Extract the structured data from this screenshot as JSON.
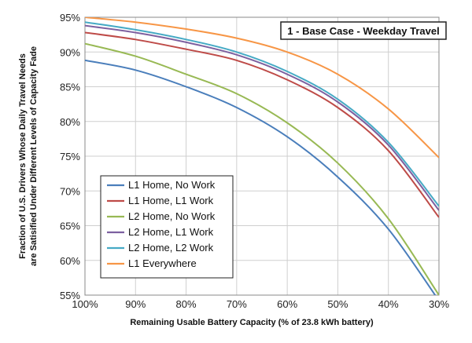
{
  "chart_data": {
    "type": "line",
    "title": "1 - Base Case - Weekday Travel",
    "xlabel": "Remaining Usable Battery Capacity (% of 23.8 kWh battery)",
    "ylabel_line1": "Fraction of U.S. Drivers Whose Daily Travel Needs",
    "ylabel_line2": "are Satisified Under Different Levels of Capacity Fade",
    "x_tick_labels": [
      "100%",
      "90%",
      "80%",
      "70%",
      "60%",
      "50%",
      "40%",
      "30%"
    ],
    "y_tick_labels": [
      "95%",
      "90%",
      "85%",
      "80%",
      "75%",
      "70%",
      "65%",
      "60%",
      "55%"
    ],
    "xlim": [
      100,
      30
    ],
    "ylim": [
      55,
      95
    ],
    "x": [
      100,
      90,
      80,
      70,
      60,
      50,
      40,
      30
    ],
    "legend_position": "bottom-left",
    "grid": true,
    "series": [
      {
        "name": "L1 Home, No Work",
        "color": "#4a7ebb",
        "values": [
          88.8,
          87.4,
          85.0,
          82.0,
          77.8,
          72.0,
          64.5,
          54.2
        ]
      },
      {
        "name": "L1 Home, L1 Work",
        "color": "#be4b48",
        "values": [
          92.8,
          91.8,
          90.4,
          88.8,
          86.0,
          82.0,
          75.8,
          66.2
        ]
      },
      {
        "name": "L2 Home, No Work",
        "color": "#98b954",
        "values": [
          91.2,
          89.4,
          86.8,
          84.0,
          79.8,
          74.0,
          66.0,
          55.0
        ]
      },
      {
        "name": "L2 Home, L1 Work",
        "color": "#7d60a0",
        "values": [
          93.8,
          92.8,
          91.4,
          89.6,
          86.8,
          82.8,
          76.6,
          67.2
        ]
      },
      {
        "name": "L2 Home, L2 Work",
        "color": "#46aac5",
        "values": [
          94.3,
          93.2,
          91.8,
          90.0,
          87.2,
          83.2,
          77.0,
          67.8
        ]
      },
      {
        "name": "L1 Everywhere",
        "color": "#f79646",
        "values": [
          95.0,
          94.3,
          93.3,
          92.0,
          90.0,
          86.8,
          81.8,
          74.8
        ]
      }
    ]
  }
}
